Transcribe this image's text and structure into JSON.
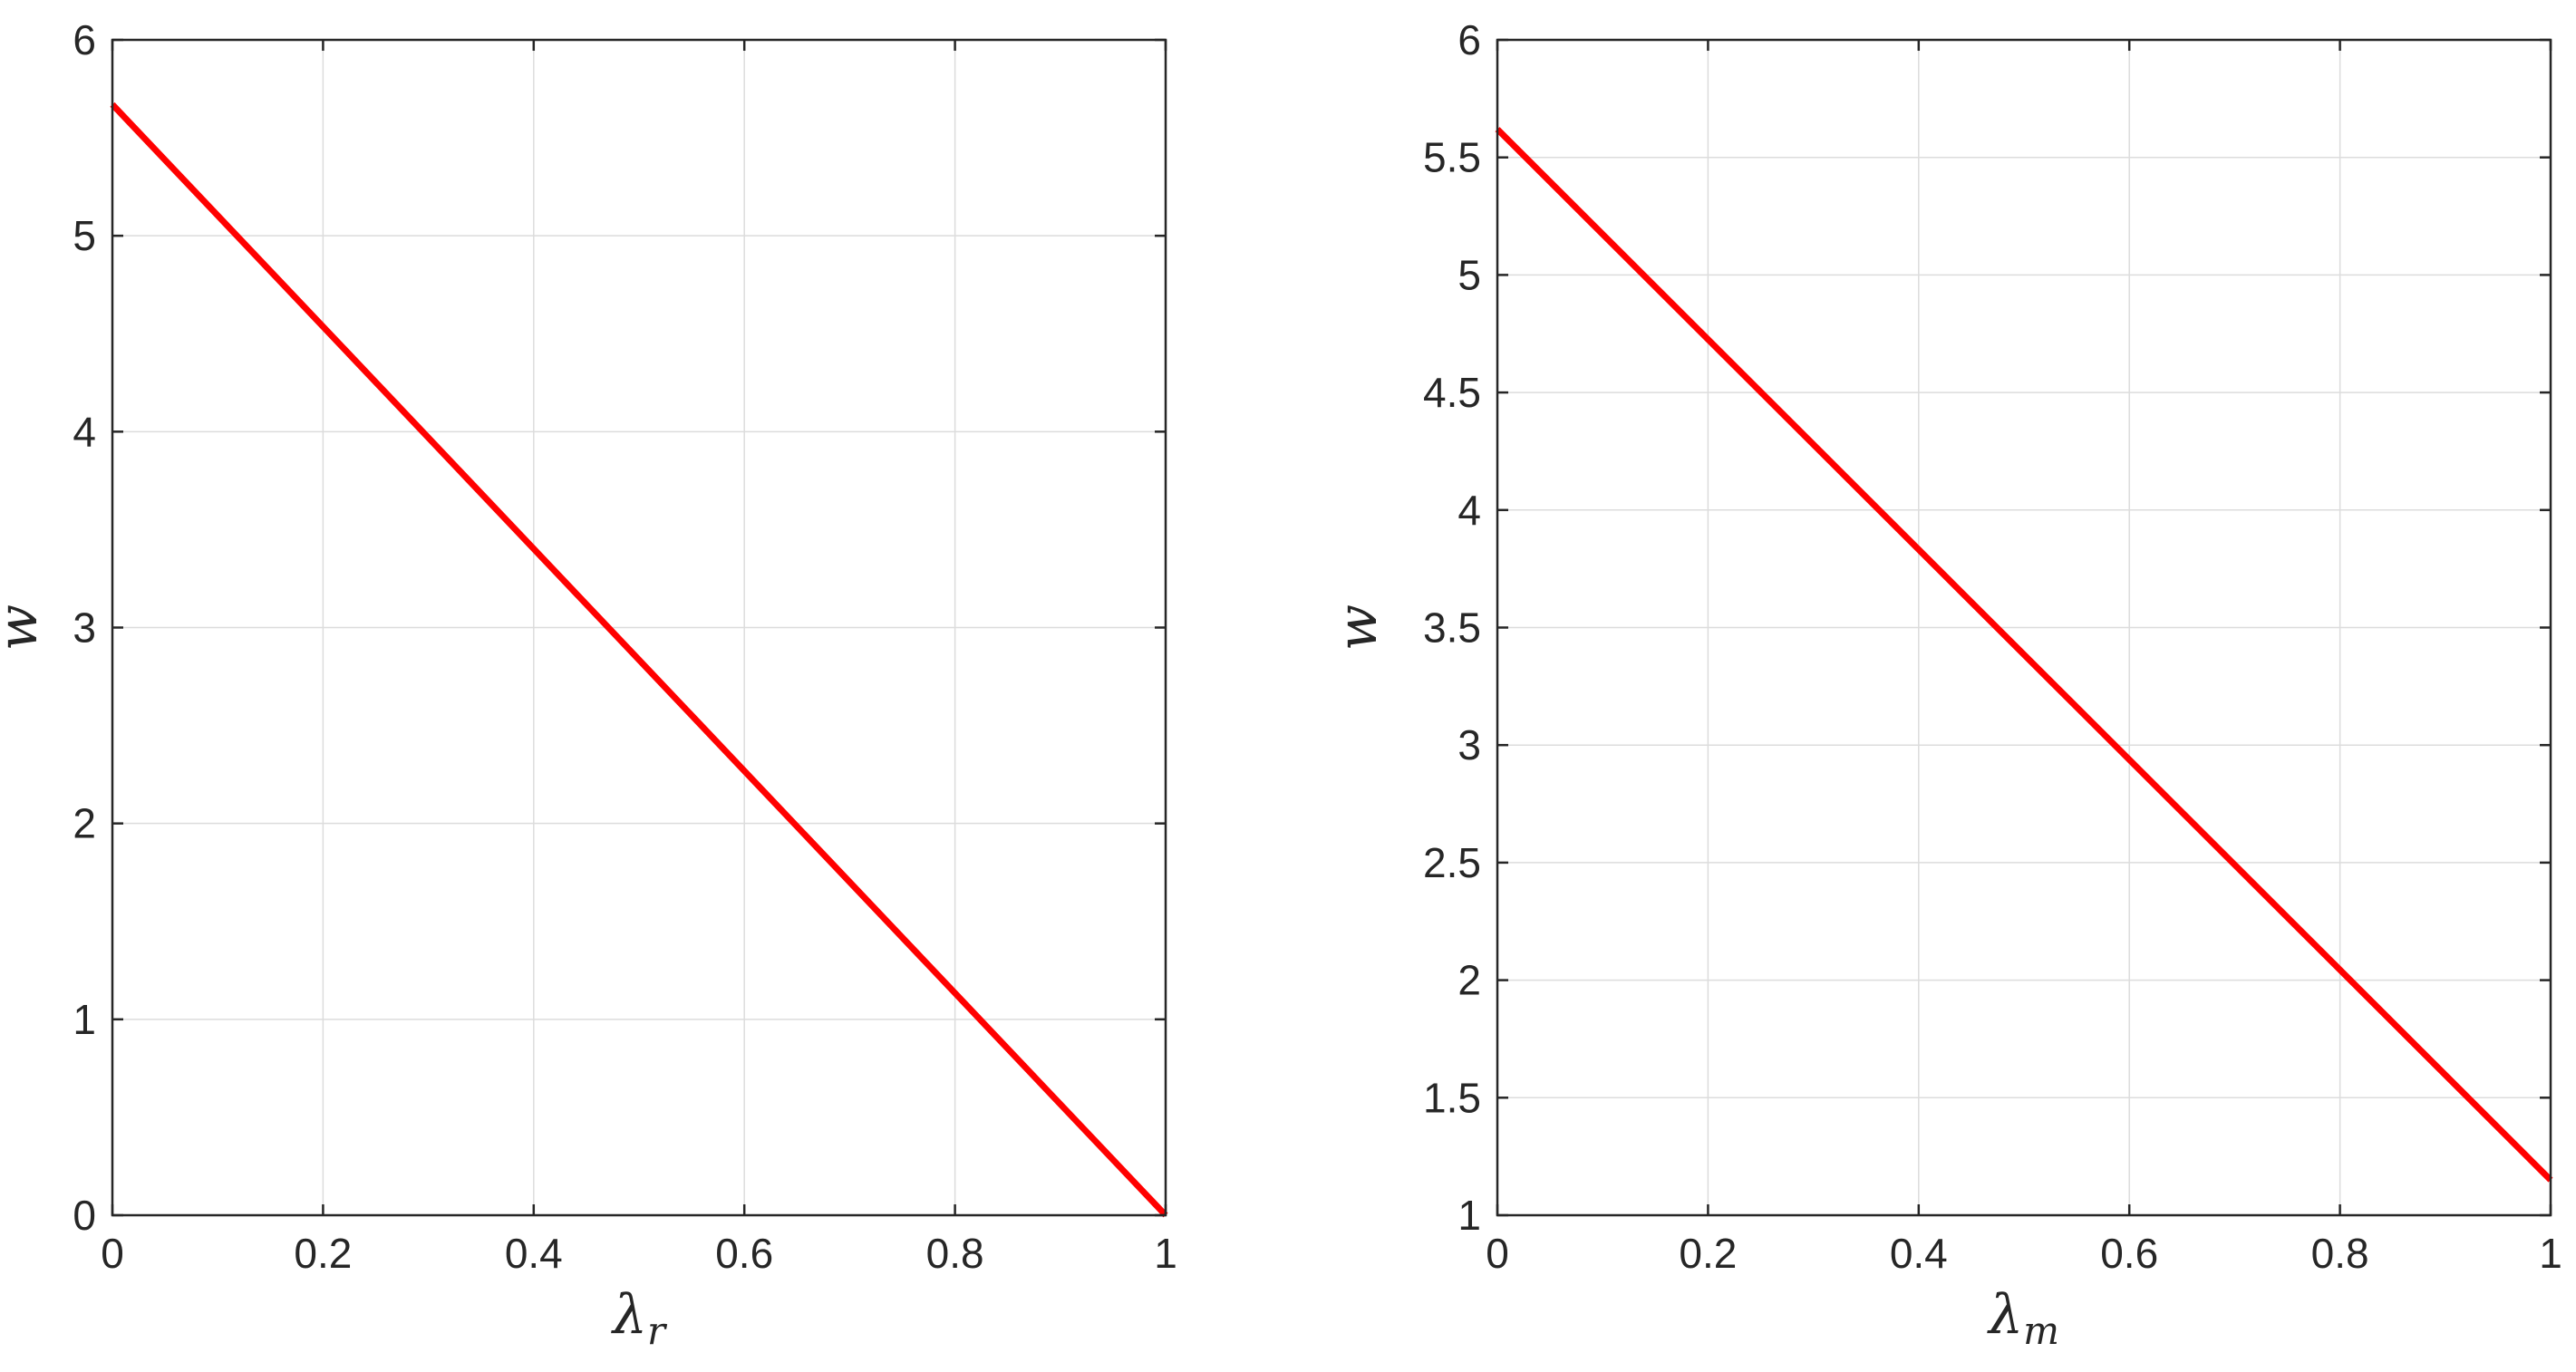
{
  "chart_data": [
    {
      "type": "line",
      "xlabel": "λ",
      "xlabel_sub": "r",
      "ylabel": "w",
      "xlim": [
        0,
        1
      ],
      "ylim": [
        0,
        6
      ],
      "xticks": [
        0,
        0.2,
        0.4,
        0.6,
        0.8,
        1
      ],
      "xtick_labels": [
        "0",
        "0.2",
        "0.4",
        "0.6",
        "0.8",
        "1"
      ],
      "yticks": [
        0,
        1,
        2,
        3,
        4,
        5,
        6
      ],
      "ytick_labels": [
        "0",
        "1",
        "2",
        "3",
        "4",
        "5",
        "6"
      ],
      "grid": true,
      "series": [
        {
          "color": "#ff0000",
          "x": [
            0,
            1
          ],
          "y": [
            5.67,
            0
          ]
        }
      ]
    },
    {
      "type": "line",
      "xlabel": "λ",
      "xlabel_sub": "m",
      "ylabel": "w",
      "xlim": [
        0,
        1
      ],
      "ylim": [
        1,
        6
      ],
      "xticks": [
        0,
        0.2,
        0.4,
        0.6,
        0.8,
        1
      ],
      "xtick_labels": [
        "0",
        "0.2",
        "0.4",
        "0.6",
        "0.8",
        "1"
      ],
      "yticks": [
        1,
        1.5,
        2,
        2.5,
        3,
        3.5,
        4,
        4.5,
        5,
        5.5,
        6
      ],
      "ytick_labels": [
        "1",
        "1.5",
        "2",
        "2.5",
        "3",
        "3.5",
        "4",
        "4.5",
        "5",
        "5.5",
        "6"
      ],
      "grid": true,
      "series": [
        {
          "color": "#ff0000",
          "x": [
            0,
            1
          ],
          "y": [
            5.62,
            1.15
          ]
        }
      ]
    }
  ]
}
